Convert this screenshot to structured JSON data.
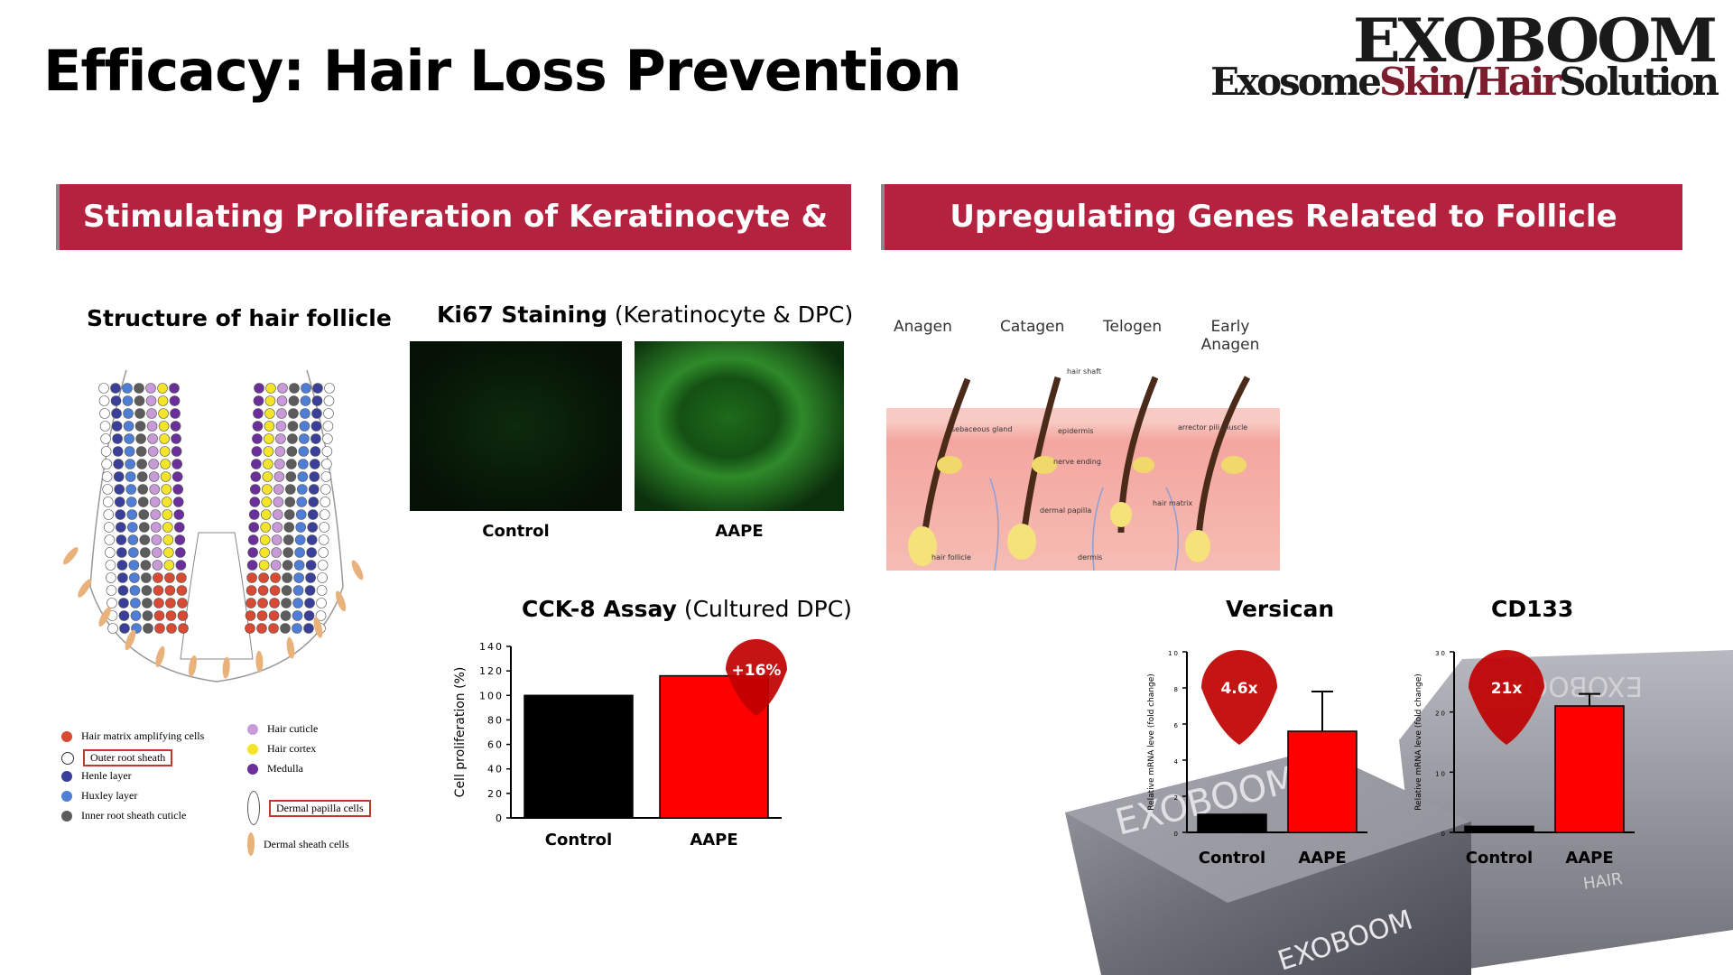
{
  "header": {
    "title": "Efficacy: Hair Loss Prevention",
    "logo_main": "EXOBOOM",
    "logo_sub_1": "Exosome",
    "logo_sub_2": "Skin",
    "logo_sub_3": "/",
    "logo_sub_4": "Hair",
    "logo_sub_5": "Solution"
  },
  "left_banner": "Stimulating Proliferation of Keratinocyte & DPC",
  "right_banner": "Upregulating Genes Related to Follicle Formation",
  "follicle": {
    "title": "Structure of hair follicle",
    "legend_left": [
      "Hair matrix amplifying cells",
      "Outer root sheath",
      "Henle layer",
      "Huxley layer",
      "Inner root sheath cuticle"
    ],
    "legend_right": [
      "Hair cuticle",
      "Hair cortex",
      "Medulla",
      "Dermal papilla cells",
      "Dermal sheath cells"
    ],
    "colors": {
      "matrix": "#d84a34",
      "outer": "#ffffff",
      "henle": "#3a3f9a",
      "huxley": "#4f7ed6",
      "inner": "#5c5c5c",
      "cuticle": "#c99ad8",
      "cortex": "#f5e52a",
      "medulla": "#6a2f9a",
      "sheath": "#e9b27a"
    }
  },
  "ki67": {
    "title_bold": "Ki67 Staining",
    "title_light": " (Keratinocyte & DPC)",
    "labels": [
      "Control",
      "AAPE"
    ]
  },
  "cycle": {
    "stages": [
      "Anagen",
      "Catagen",
      "Telogen",
      "Early Anagen"
    ],
    "annotations": [
      "hair shaft",
      "sebaceous gland",
      "epidermis",
      "arrector pili muscle",
      "nerve ending",
      "dermal papilla",
      "hair matrix",
      "hair follicle",
      "dermis"
    ]
  },
  "product_labels": [
    "EXOBOOM",
    "EXOBOOM",
    "HAIR",
    "EXOBOOM"
  ],
  "accent": "#b5223f",
  "chart_data": [
    {
      "type": "bar",
      "title_bold": "CCK-8 Assay",
      "title_light": " (Cultured DPC)",
      "categories": [
        "Control",
        "AAPE"
      ],
      "values": [
        100,
        116
      ],
      "colors": [
        "#000000",
        "#ff0000"
      ],
      "ylabel": "Cell proliferation (%)",
      "ylim": [
        0,
        140
      ],
      "yticks": [
        "0",
        "20",
        "40",
        "60",
        "80",
        "100",
        "120",
        "140"
      ],
      "annotation": "+16%"
    },
    {
      "type": "bar",
      "title": "Versican",
      "categories": [
        "Control",
        "AAPE"
      ],
      "values": [
        1,
        5.6
      ],
      "error": [
        0,
        2.2
      ],
      "colors": [
        "#000000",
        "#ff0000"
      ],
      "ylabel": "Relative mRNA leve (fold change)",
      "ylim": [
        0,
        10
      ],
      "yticks": [
        "0",
        "2",
        "4",
        "6",
        "8",
        "10"
      ],
      "annotation": "4.6x"
    },
    {
      "type": "bar",
      "title": "CD133",
      "categories": [
        "Control",
        "AAPE"
      ],
      "values": [
        1,
        21
      ],
      "error": [
        0,
        2
      ],
      "colors": [
        "#000000",
        "#ff0000"
      ],
      "ylabel": "Relative mRNA leve (fold change)",
      "ylim": [
        0,
        30
      ],
      "yticks": [
        "0",
        "10",
        "20",
        "30"
      ],
      "annotation": "21x"
    }
  ]
}
